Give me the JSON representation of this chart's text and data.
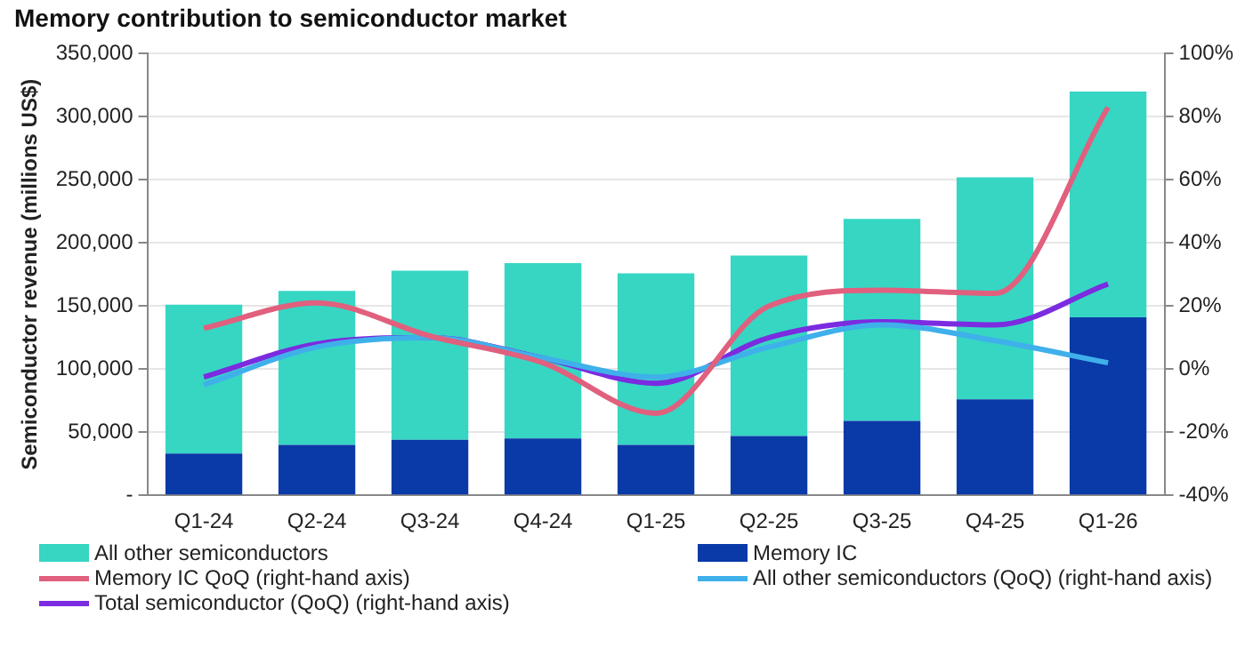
{
  "chart_data": {
    "type": "bar",
    "title": "Memory contribution to semiconductor market",
    "ylabel": "Semiconductor revenue (millions US$)",
    "categories": [
      "Q1-24",
      "Q2-24",
      "Q3-24",
      "Q4-24",
      "Q1-25",
      "Q2-25",
      "Q3-25",
      "Q4-25",
      "Q1-26"
    ],
    "stacked": true,
    "grid": "y",
    "legend": "bottom",
    "ylim": [
      0,
      350000
    ],
    "yticks": [
      {
        "value": 0,
        "label": "-"
      },
      {
        "value": 50000,
        "label": "50,000"
      },
      {
        "value": 100000,
        "label": "100,000"
      },
      {
        "value": 150000,
        "label": "150,000"
      },
      {
        "value": 200000,
        "label": "200,000"
      },
      {
        "value": 250000,
        "label": "250,000"
      },
      {
        "value": 300000,
        "label": "300,000"
      },
      {
        "value": 350000,
        "label": "350,000"
      }
    ],
    "y2lim": [
      -40,
      100
    ],
    "y2ticks": [
      {
        "value": -40,
        "label": "-40%"
      },
      {
        "value": -20,
        "label": "-20%"
      },
      {
        "value": 0,
        "label": "0%"
      },
      {
        "value": 20,
        "label": "20%"
      },
      {
        "value": 40,
        "label": "40%"
      },
      {
        "value": 60,
        "label": "60%"
      },
      {
        "value": 80,
        "label": "80%"
      },
      {
        "value": 100,
        "label": "100%"
      }
    ],
    "series": [
      {
        "name": "Memory IC",
        "color": "#0a3aa8",
        "values": [
          33000,
          40000,
          44000,
          45000,
          40000,
          47000,
          59000,
          76000,
          141000
        ]
      },
      {
        "name": "All other semiconductors",
        "color": "#36d6c3",
        "values": [
          118000,
          122000,
          134000,
          139000,
          136000,
          143000,
          160000,
          176000,
          179000
        ]
      },
      {
        "name": "Memory IC QoQ (right-hand axis)",
        "type": "line",
        "axis": "y2",
        "color": "#e0607e",
        "values": [
          13,
          21,
          10.5,
          2,
          -14,
          20,
          25,
          24,
          83
        ]
      },
      {
        "name": "All other semiconductors (QoQ) (right-hand axis)",
        "type": "line",
        "axis": "y2",
        "color": "#3fb0ea",
        "values": [
          -5,
          7,
          10,
          3.5,
          -2.5,
          7,
          14,
          9,
          2
        ]
      },
      {
        "name": "Total semiconductor (QoQ) (right-hand axis)",
        "type": "line",
        "axis": "y2",
        "color": "#7b2be0",
        "values": [
          -2.5,
          8,
          10,
          3.5,
          -4.5,
          10,
          15,
          14,
          27
        ]
      }
    ]
  }
}
